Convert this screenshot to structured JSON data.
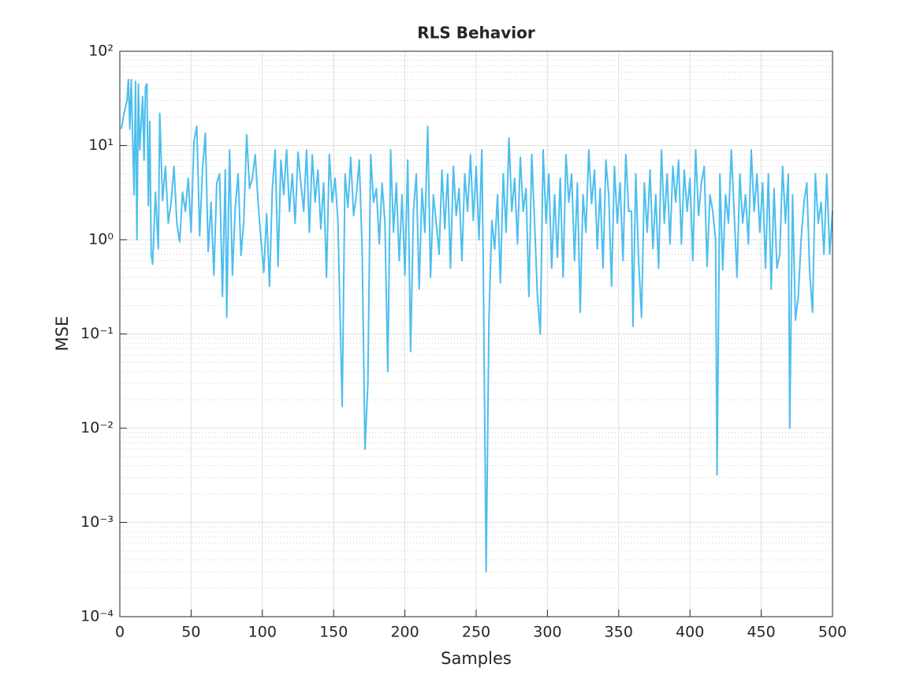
{
  "chart_data": {
    "type": "line",
    "title": "RLS Behavior",
    "x_label": "Samples",
    "y_label": "MSE",
    "xlim": [
      0,
      500
    ],
    "xticks": [
      0,
      50,
      100,
      150,
      200,
      250,
      300,
      350,
      400,
      450,
      500
    ],
    "ylim": [
      0.0001,
      100
    ],
    "y_scale": "log",
    "yticks": [
      {
        "value": 0.0001,
        "label": "10⁻⁴"
      },
      {
        "value": 0.001,
        "label": "10⁻³"
      },
      {
        "value": 0.01,
        "label": "10⁻²"
      },
      {
        "value": 0.1,
        "label": "10⁻¹"
      },
      {
        "value": 1,
        "label": "10⁰"
      },
      {
        "value": 10,
        "label": "10¹"
      },
      {
        "value": 100,
        "label": "10²"
      }
    ],
    "grid": true,
    "minor_grid": true,
    "series": [
      {
        "color": "#4dbeee",
        "x": [
          1,
          3,
          5,
          6,
          7,
          8,
          10,
          11,
          12,
          13,
          14,
          16,
          17,
          18,
          19,
          20,
          21,
          22,
          23,
          25,
          27,
          28,
          30,
          32,
          34,
          36,
          38,
          40,
          42,
          44,
          46,
          48,
          50,
          52,
          54,
          56,
          58,
          60,
          62,
          64,
          66,
          68,
          70,
          72,
          74,
          75,
          77,
          79,
          81,
          83,
          85,
          87,
          89,
          91,
          93,
          95,
          97,
          99,
          101,
          103,
          105,
          107,
          109,
          111,
          113,
          115,
          117,
          119,
          121,
          123,
          125,
          127,
          129,
          131,
          133,
          135,
          137,
          139,
          141,
          143,
          145,
          147,
          149,
          151,
          153,
          156,
          158,
          160,
          162,
          164,
          166,
          168,
          170,
          172,
          174,
          176,
          178,
          180,
          182,
          184,
          186,
          188,
          190,
          192,
          194,
          196,
          198,
          200,
          202,
          204,
          206,
          208,
          210,
          212,
          214,
          216,
          218,
          220,
          222,
          224,
          226,
          228,
          230,
          232,
          234,
          236,
          238,
          240,
          242,
          244,
          246,
          248,
          250,
          252,
          254,
          255,
          257,
          259,
          261,
          263,
          265,
          267,
          269,
          271,
          273,
          275,
          277,
          279,
          281,
          283,
          285,
          287,
          289,
          291,
          293,
          295,
          297,
          299,
          301,
          303,
          305,
          307,
          309,
          311,
          313,
          315,
          317,
          319,
          321,
          323,
          325,
          327,
          329,
          331,
          333,
          335,
          337,
          339,
          341,
          343,
          345,
          347,
          349,
          351,
          353,
          355,
          357,
          359,
          360,
          362,
          364,
          366,
          368,
          370,
          372,
          374,
          376,
          378,
          380,
          382,
          384,
          386,
          388,
          390,
          392,
          394,
          396,
          398,
          400,
          402,
          404,
          406,
          408,
          410,
          412,
          414,
          416,
          418,
          419,
          421,
          423,
          425,
          427,
          429,
          431,
          433,
          435,
          437,
          439,
          441,
          443,
          445,
          447,
          449,
          451,
          453,
          455,
          457,
          459,
          461,
          463,
          465,
          467,
          469,
          470,
          472,
          474,
          476,
          478,
          480,
          482,
          484,
          486,
          488,
          490,
          492,
          494,
          496,
          498,
          500
        ],
        "values": [
          15,
          22,
          30,
          50,
          15,
          50,
          3,
          48,
          1,
          45,
          9,
          33,
          7,
          42,
          45,
          2.3,
          18,
          0.7,
          0.55,
          3.2,
          0.8,
          22,
          2.6,
          6,
          1.5,
          2.5,
          6,
          1.5,
          0.95,
          3.2,
          2,
          4.5,
          1.2,
          11,
          16,
          1.1,
          5.5,
          13.5,
          0.75,
          2.5,
          0.42,
          4,
          5,
          0.25,
          5.5,
          0.15,
          9,
          0.42,
          2.2,
          5,
          0.68,
          1.6,
          13,
          3.5,
          4.5,
          8,
          2.5,
          1,
          0.45,
          1.9,
          0.32,
          3.5,
          9,
          0.52,
          7,
          3,
          9,
          2,
          5,
          1.5,
          8.5,
          4,
          2,
          9,
          1.2,
          8,
          2.5,
          5.5,
          1.3,
          4,
          0.4,
          8,
          2.5,
          4.5,
          1.6,
          0.017,
          5,
          2.2,
          7.5,
          1.8,
          3,
          7,
          0.8,
          0.006,
          0.029,
          8,
          2.5,
          3.5,
          0.9,
          4,
          1.5,
          0.04,
          9,
          1.2,
          4,
          0.6,
          3,
          0.42,
          7,
          0.065,
          2,
          5,
          0.3,
          3.5,
          1.2,
          16,
          0.4,
          3,
          1.5,
          0.7,
          5.5,
          1.3,
          5,
          0.5,
          6,
          1.8,
          3.5,
          0.6,
          5,
          2,
          8,
          1.6,
          6,
          1,
          9,
          0.5,
          0.0003,
          0.15,
          1.6,
          0.8,
          3,
          0.35,
          5,
          1.2,
          12,
          2,
          4.5,
          0.9,
          7.5,
          2,
          3.5,
          0.25,
          8,
          1.5,
          0.25,
          0.1,
          9,
          1.5,
          5,
          0.5,
          3,
          0.65,
          4.5,
          0.4,
          8,
          2.5,
          5,
          0.6,
          4,
          0.17,
          3,
          1.2,
          9,
          2.4,
          5.5,
          0.8,
          3.5,
          0.5,
          7,
          3,
          0.32,
          6,
          1.5,
          4,
          0.6,
          8,
          2,
          2,
          0.12,
          5,
          0.6,
          0.15,
          4,
          1.2,
          5.5,
          0.8,
          3,
          0.5,
          9,
          1.5,
          5,
          0.9,
          6,
          2.5,
          7,
          0.9,
          5.5,
          2,
          4.5,
          0.6,
          9,
          1.8,
          4,
          6,
          0.52,
          3,
          2,
          1,
          0.0032,
          5,
          0.48,
          3,
          1.5,
          9,
          2,
          0.4,
          5,
          1.5,
          3,
          0.9,
          9,
          2,
          5,
          1.2,
          4,
          0.5,
          5,
          0.3,
          3.5,
          0.5,
          0.7,
          6,
          1.5,
          5,
          0.01,
          3,
          0.14,
          0.25,
          1,
          2.5,
          4,
          0.45,
          0.17,
          5,
          1.5,
          2.5,
          0.7,
          5,
          0.7,
          2
        ]
      }
    ]
  }
}
